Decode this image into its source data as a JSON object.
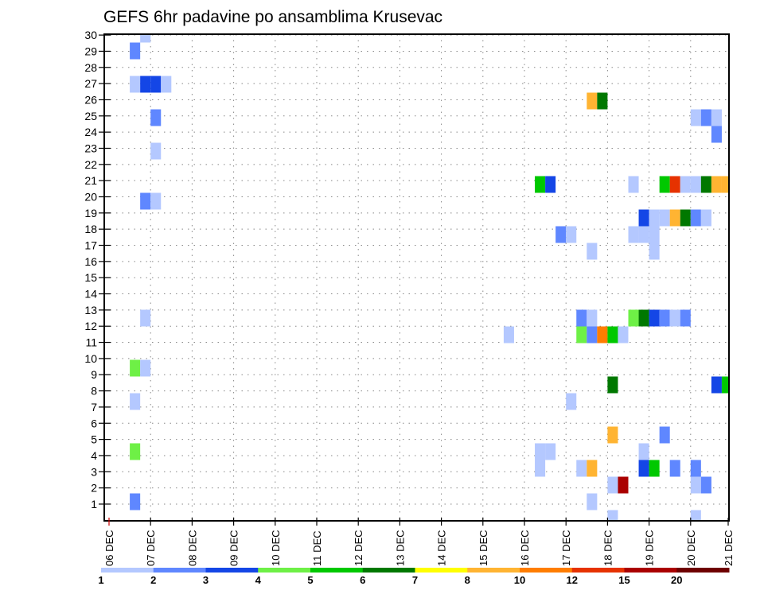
{
  "chart_data": {
    "type": "heatmap",
    "title": "GEFS 6hr padavine po ansamblima Krusevac",
    "xlabel": "",
    "ylabel": "",
    "x_unit": "6-hour steps from 06 DEC 00Z",
    "x_tick_labels": [
      "06 DEC",
      "07 DEC",
      "08 DEC",
      "09 DEC",
      "10 DEC",
      "11 DEC",
      "12 DEC",
      "13 DEC",
      "14 DEC",
      "15 DEC",
      "16 DEC",
      "17 DEC",
      "18 DEC",
      "19 DEC",
      "20 DEC",
      "21 DEC"
    ],
    "y_tick_labels": [
      "1",
      "2",
      "3",
      "4",
      "5",
      "6",
      "7",
      "8",
      "9",
      "10",
      "11",
      "12",
      "13",
      "14",
      "15",
      "16",
      "17",
      "18",
      "19",
      "20",
      "21",
      "22",
      "23",
      "24",
      "25",
      "26",
      "27",
      "28",
      "29",
      "30"
    ],
    "ylim": [
      0,
      30
    ],
    "grid": true,
    "legend_placement": "bottom",
    "colorbar": {
      "labels": [
        "1",
        "2",
        "3",
        "4",
        "5",
        "6",
        "7",
        "8",
        "10",
        "12",
        "15",
        "20"
      ],
      "colors": [
        "#b4c8ff",
        "#5f87ff",
        "#1446e6",
        "#6ef046",
        "#00c800",
        "#007800",
        "#ffff00",
        "#ffb432",
        "#ff7d00",
        "#e63200",
        "#aa0000",
        "#6e0000"
      ]
    },
    "cells_format": "[time_step, member, color_class_index]",
    "cells": [
      [
        3,
        30,
        0
      ],
      [
        2,
        29,
        1
      ],
      [
        2,
        27,
        0
      ],
      [
        3,
        27,
        2
      ],
      [
        4,
        27,
        2
      ],
      [
        5,
        27,
        0
      ],
      [
        46,
        26,
        7
      ],
      [
        47,
        26,
        5
      ],
      [
        4,
        25,
        1
      ],
      [
        56,
        25,
        0
      ],
      [
        57,
        25,
        1
      ],
      [
        58,
        25,
        0
      ],
      [
        58,
        24,
        1
      ],
      [
        4,
        23,
        0
      ],
      [
        41,
        21,
        4
      ],
      [
        42,
        21,
        2
      ],
      [
        50,
        21,
        0
      ],
      [
        53,
        21,
        4
      ],
      [
        54,
        21,
        9
      ],
      [
        55,
        21,
        0
      ],
      [
        56,
        21,
        0
      ],
      [
        57,
        21,
        5
      ],
      [
        58,
        21,
        7
      ],
      [
        59,
        21,
        7
      ],
      [
        3,
        20,
        1
      ],
      [
        4,
        20,
        0
      ],
      [
        51,
        19,
        2
      ],
      [
        52,
        19,
        0
      ],
      [
        53,
        19,
        0
      ],
      [
        54,
        19,
        7
      ],
      [
        55,
        19,
        5
      ],
      [
        56,
        19,
        1
      ],
      [
        57,
        19,
        0
      ],
      [
        43,
        18,
        1
      ],
      [
        44,
        18,
        0
      ],
      [
        50,
        18,
        0
      ],
      [
        51,
        18,
        0
      ],
      [
        52,
        18,
        0
      ],
      [
        46,
        17,
        0
      ],
      [
        52,
        17,
        0
      ],
      [
        3,
        13,
        0
      ],
      [
        45,
        13,
        1
      ],
      [
        46,
        13,
        0
      ],
      [
        50,
        13,
        3
      ],
      [
        51,
        13,
        5
      ],
      [
        52,
        13,
        2
      ],
      [
        53,
        13,
        1
      ],
      [
        54,
        13,
        0
      ],
      [
        55,
        13,
        1
      ],
      [
        38,
        12,
        0
      ],
      [
        45,
        12,
        3
      ],
      [
        46,
        12,
        1
      ],
      [
        47,
        12,
        8
      ],
      [
        48,
        12,
        4
      ],
      [
        49,
        12,
        0
      ],
      [
        2,
        10,
        3
      ],
      [
        3,
        10,
        0
      ],
      [
        48,
        9,
        5
      ],
      [
        58,
        9,
        2
      ],
      [
        59,
        9,
        4
      ],
      [
        2,
        8,
        0
      ],
      [
        44,
        8,
        0
      ],
      [
        48,
        6,
        7
      ],
      [
        53,
        6,
        1
      ],
      [
        2,
        5,
        3
      ],
      [
        41,
        5,
        0
      ],
      [
        42,
        5,
        0
      ],
      [
        51,
        5,
        0
      ],
      [
        41,
        4,
        0
      ],
      [
        45,
        4,
        0
      ],
      [
        46,
        4,
        7
      ],
      [
        51,
        4,
        2
      ],
      [
        52,
        4,
        4
      ],
      [
        54,
        4,
        1
      ],
      [
        56,
        4,
        1
      ],
      [
        48,
        3,
        0
      ],
      [
        49,
        3,
        10
      ],
      [
        56,
        3,
        0
      ],
      [
        57,
        3,
        1
      ],
      [
        2,
        2,
        1
      ],
      [
        46,
        2,
        0
      ],
      [
        48,
        1,
        0
      ],
      [
        56,
        1,
        0
      ]
    ]
  }
}
